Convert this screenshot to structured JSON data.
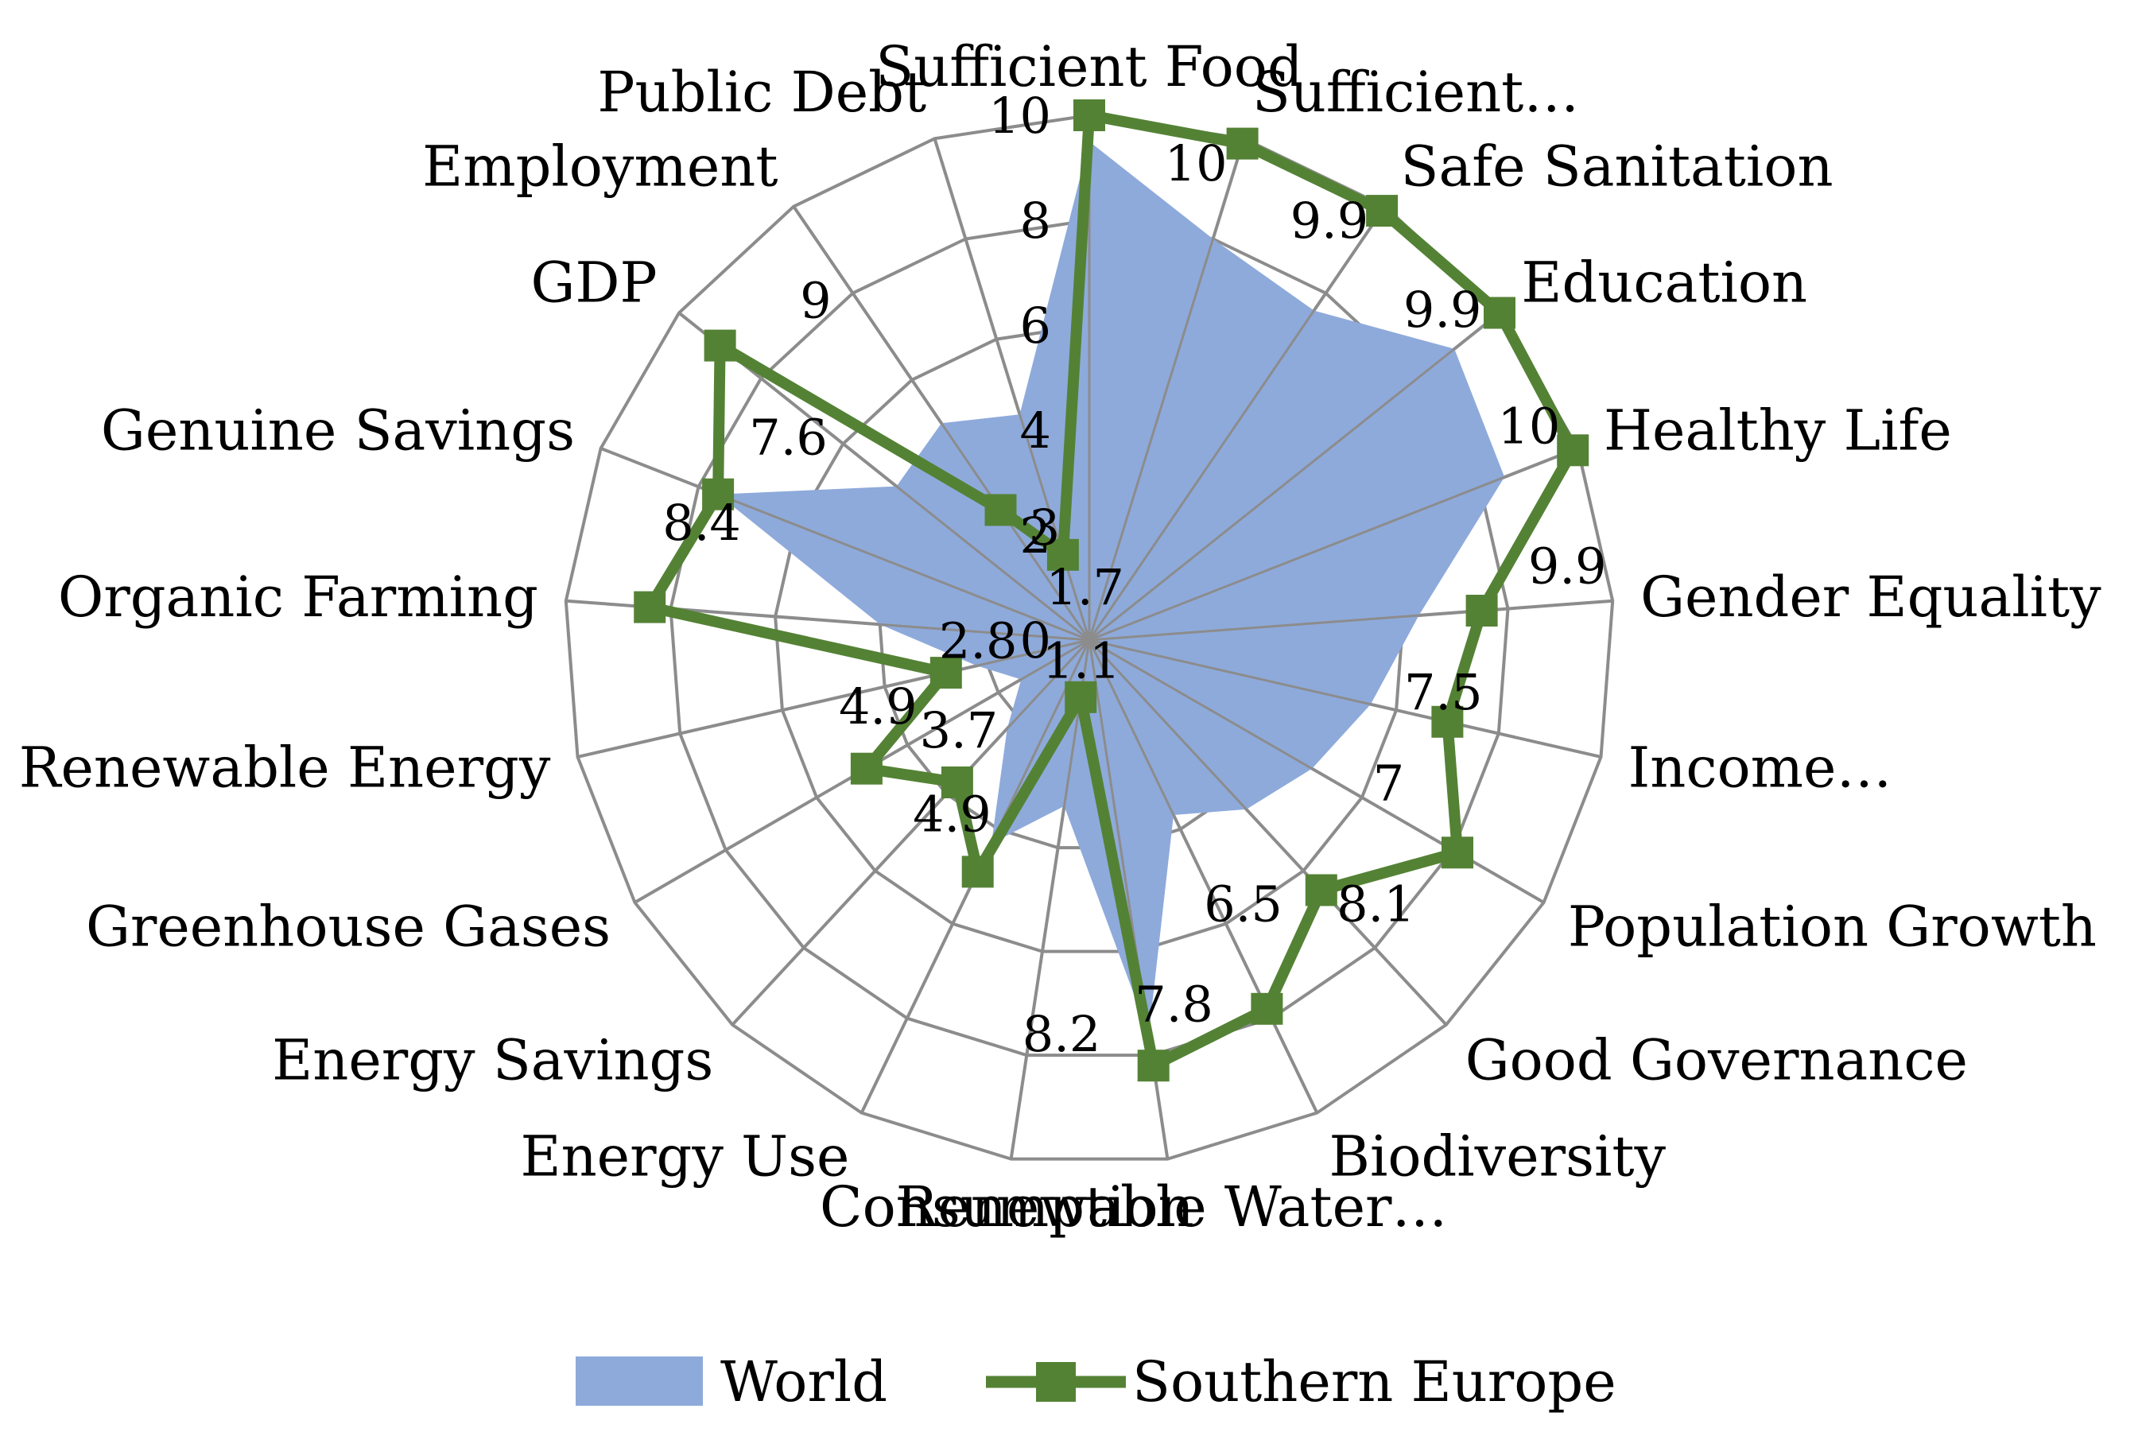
{
  "chart_data": {
    "type": "radar",
    "categories": [
      "Sufficient Food",
      "Sufficient…",
      "Safe Sanitation",
      "Education",
      "Healthy Life",
      "Gender Equality",
      "Income…",
      "Population Growth",
      "Good Governance",
      "Biodiversity",
      "Renewable Water…",
      "Consumption",
      "Energy Use",
      "Energy Savings",
      "Greenhouse Gases",
      "Renewable Energy",
      "Organic Farming",
      "Genuine Savings",
      "GDP",
      "Employment",
      "Public Debt"
    ],
    "series": [
      {
        "name": "World",
        "values": [
          9.5,
          8.0,
          7.6,
          8.9,
          8.5,
          6.3,
          5.5,
          4.9,
          4.4,
          3.7,
          7.6,
          3.2,
          4.3,
          2.3,
          1.5,
          2.2,
          4.0,
          7.6,
          4.7,
          5.0,
          4.5
        ]
      },
      {
        "name": "Southern Europe",
        "values": [
          10,
          9.9,
          9.9,
          10,
          9.9,
          7.5,
          7,
          8.1,
          6.5,
          7.8,
          8.2,
          1.1,
          4.9,
          3.7,
          4.9,
          2.8,
          8.4,
          7.6,
          9,
          3,
          1.7
        ]
      }
    ],
    "data_labels": [
      {
        "category": "Sufficient Food",
        "text": "10"
      },
      {
        "category": "Sufficient…",
        "text": "9.9"
      },
      {
        "category": "Safe Sanitation",
        "text": "9.9"
      },
      {
        "category": "Education",
        "text": "10"
      },
      {
        "category": "Healthy Life",
        "text": "9.9"
      },
      {
        "category": "Gender Equality",
        "text": "7.5"
      },
      {
        "category": "Income…",
        "text": "7"
      },
      {
        "category": "Population Growth",
        "text": "8.1"
      },
      {
        "category": "Good Governance",
        "text": "6.5"
      },
      {
        "category": "Biodiversity",
        "text": "7.8"
      },
      {
        "category": "Renewable Water…",
        "text": "8.2"
      },
      {
        "category": "Consumption",
        "text": "1.1"
      },
      {
        "category": "Energy Use",
        "text": "4.9"
      },
      {
        "category": "Energy Savings",
        "text": "3.7"
      },
      {
        "category": "Greenhouse Gases",
        "text": "4.9"
      },
      {
        "category": "Renewable Energy",
        "text": "2.8"
      },
      {
        "category": "Organic Farming",
        "text": "8.4"
      },
      {
        "category": "Genuine Savings",
        "text": "7.6"
      },
      {
        "category": "GDP",
        "text": "9"
      },
      {
        "category": "Employment",
        "text": "3"
      },
      {
        "category": "Public Debt",
        "text": "1.7"
      }
    ],
    "radial_ticks": [
      "0",
      "2",
      "4",
      "6",
      "8",
      "10"
    ],
    "range": [
      0,
      10
    ],
    "grid": true,
    "legend_position": "bottom",
    "colors": {
      "World": "#8eaadb",
      "Southern Europe": "#548235",
      "grid": "#8c8c8c"
    }
  }
}
